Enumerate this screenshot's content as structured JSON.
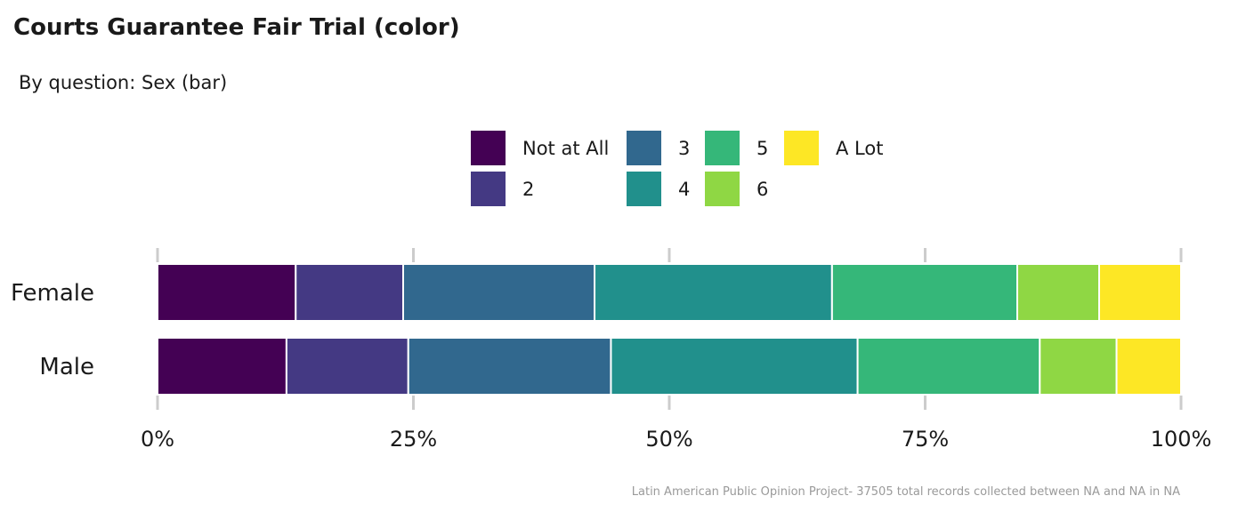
{
  "chart_data": {
    "type": "bar",
    "orientation": "horizontal",
    "stacked": "percent",
    "title": "Courts Guarantee Fair Trial (color)",
    "subtitle": "By question: Sex (bar)",
    "caption": "Latin American Public Opinion Project- 37505 total records collected between NA and NA in  NA",
    "categories": [
      "Female",
      "Male"
    ],
    "xlim": [
      0,
      1
    ],
    "x_ticks": [
      0,
      0.25,
      0.5,
      0.75,
      1
    ],
    "x_tick_labels": [
      "0%",
      "25%",
      "50%",
      "75%",
      "100%"
    ],
    "legend_position": "top",
    "grid": false,
    "series": [
      {
        "name": "Not at All",
        "color": "#440154",
        "values": [
          0.135,
          0.126
        ]
      },
      {
        "name": "2",
        "color": "#443983",
        "values": [
          0.105,
          0.119
        ]
      },
      {
        "name": "3",
        "color": "#31688E",
        "values": [
          0.187,
          0.198
        ]
      },
      {
        "name": "4",
        "color": "#21908C",
        "values": [
          0.232,
          0.241
        ]
      },
      {
        "name": "5",
        "color": "#35B779",
        "values": [
          0.181,
          0.178
        ]
      },
      {
        "name": "6",
        "color": "#8FD744",
        "values": [
          0.08,
          0.075
        ]
      },
      {
        "name": "A Lot",
        "color": "#FDE725",
        "values": [
          0.08,
          0.063
        ]
      }
    ]
  }
}
